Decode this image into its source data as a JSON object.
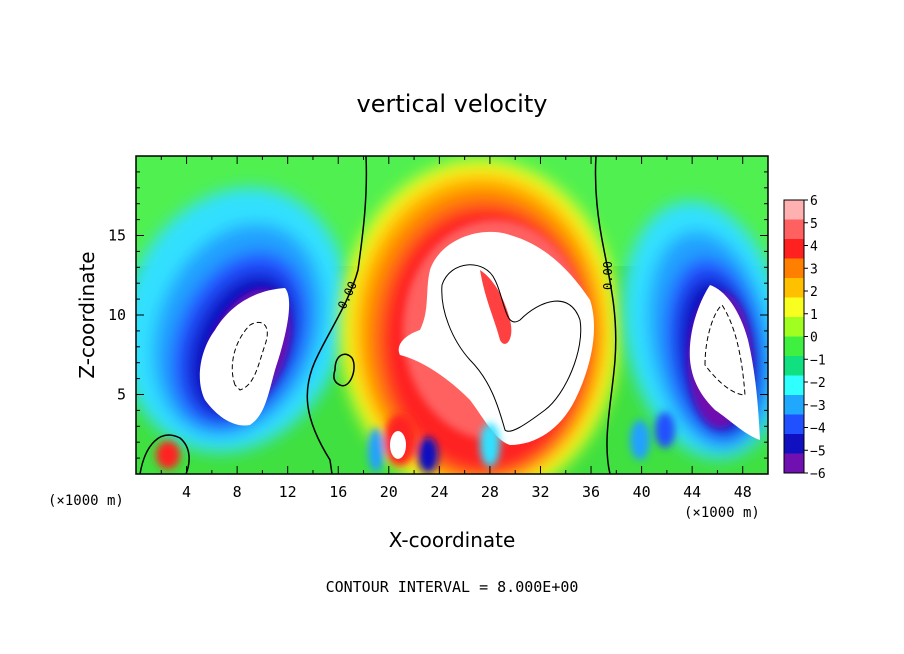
{
  "chart_data": {
    "type": "heatmap",
    "title": "vertical velocity",
    "xlabel": "X-coordinate",
    "ylabel": "Z-coordinate",
    "x_unit_left": "(×1000 m)",
    "x_unit_right": "(×1000 m)",
    "xlim": [
      0,
      50
    ],
    "ylim": [
      0,
      20
    ],
    "x_ticks": [
      "4",
      "8",
      "12",
      "16",
      "20",
      "24",
      "28",
      "32",
      "36",
      "40",
      "44",
      "48"
    ],
    "y_ticks": [
      "5",
      "10",
      "15"
    ],
    "colorbar": {
      "labels": [
        "6",
        "5",
        "4",
        "3",
        "2",
        "1",
        "0",
        "−1",
        "−2",
        "−3",
        "−4",
        "−5",
        "−6"
      ],
      "colors": [
        "#ffb0b0",
        "#ff6060",
        "#ff2020",
        "#ff8000",
        "#ffc000",
        "#f8ff20",
        "#a0ff20",
        "#40f040",
        "#10e080",
        "#30ffff",
        "#20a8ff",
        "#2050ff",
        "#1010c0",
        "#7010b0"
      ]
    },
    "contour_labels": [
      "0.00",
      "0.00"
    ],
    "footer": "CONTOUR INTERVAL = 8.000E+00",
    "features": [
      {
        "name": "left downdraft",
        "x": 9,
        "z": 9,
        "sign": "negative"
      },
      {
        "name": "central updraft",
        "x": 28,
        "z": 10,
        "sign": "positive"
      },
      {
        "name": "right downdraft",
        "x": 46,
        "z": 8,
        "sign": "negative"
      }
    ]
  }
}
